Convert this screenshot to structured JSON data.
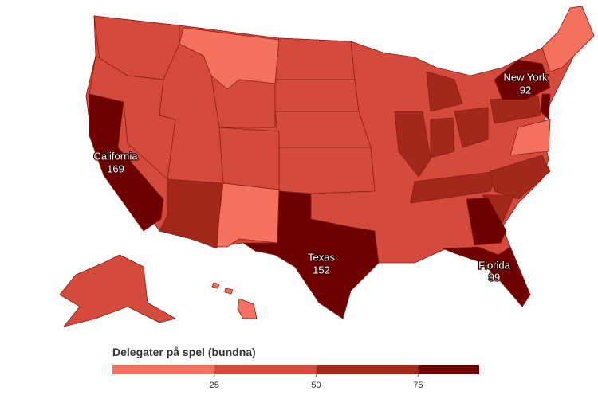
{
  "chart_data": {
    "type": "choropleth",
    "regions": [
      {
        "name": "California",
        "value": 169
      },
      {
        "name": "Texas",
        "value": 152
      },
      {
        "name": "New York",
        "value": 92
      },
      {
        "name": "Florida",
        "value": 99
      }
    ],
    "legend": {
      "title": "Delegater på spel (bundna)",
      "ticks": [
        25,
        50,
        75
      ],
      "range": [
        0,
        90
      ],
      "colors": [
        "#f4705f",
        "#d44a3c",
        "#a3281c",
        "#6e0000"
      ]
    }
  }
}
